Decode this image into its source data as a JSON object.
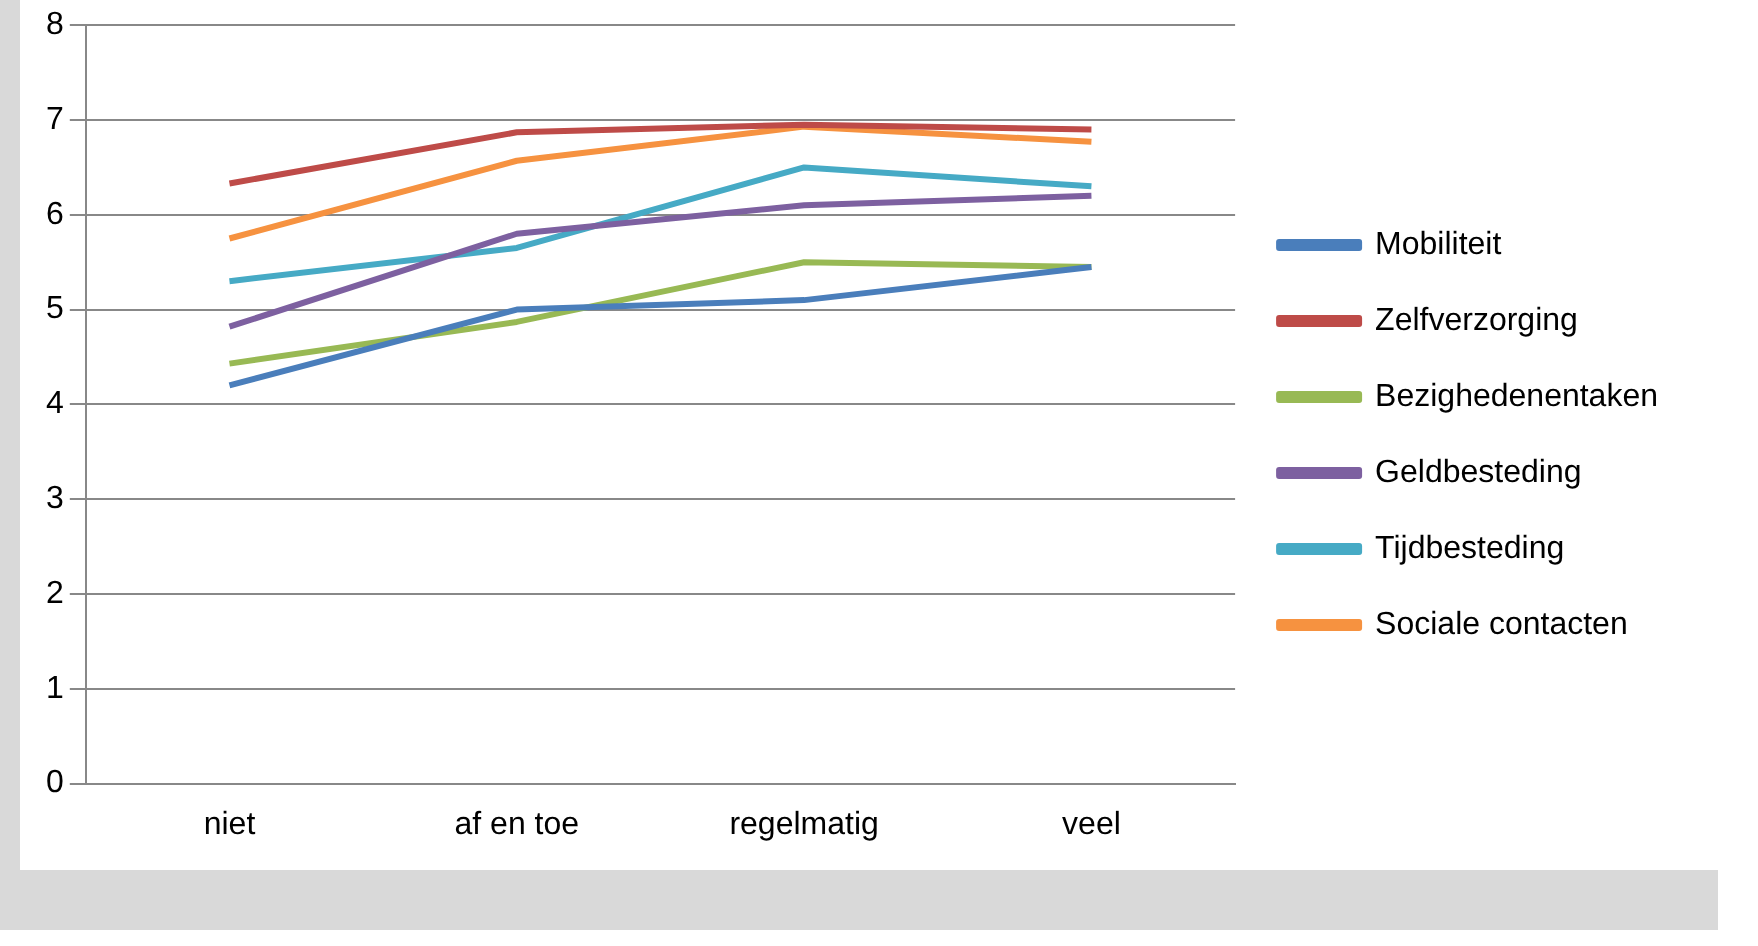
{
  "chart_data": {
    "type": "line",
    "categories": [
      "niet",
      "af en toe",
      "regelmatig",
      "veel"
    ],
    "series": [
      {
        "name": "Mobiliteit",
        "color": "#4a7ebb",
        "values": [
          4.2,
          5.0,
          5.1,
          5.45
        ]
      },
      {
        "name": "Zelfverzorging",
        "color": "#be4b48",
        "values": [
          6.33,
          6.87,
          6.95,
          6.9
        ]
      },
      {
        "name": "Bezighedenentaken",
        "color": "#98b954",
        "values": [
          4.43,
          4.87,
          5.5,
          5.45
        ]
      },
      {
        "name": "Geldbesteding",
        "color": "#7d60a0",
        "values": [
          4.82,
          5.8,
          6.1,
          6.2
        ]
      },
      {
        "name": "Tijdbesteding",
        "color": "#46aac5",
        "values": [
          5.3,
          5.65,
          6.5,
          6.3
        ]
      },
      {
        "name": "Sociale contacten",
        "color": "#f69240",
        "values": [
          5.75,
          6.57,
          6.93,
          6.77
        ]
      }
    ],
    "ylim": [
      0,
      8
    ],
    "yticks": [
      0,
      1,
      2,
      3,
      4,
      5,
      6,
      7,
      8
    ],
    "grid": "y",
    "legend": "right",
    "marker": "none"
  }
}
